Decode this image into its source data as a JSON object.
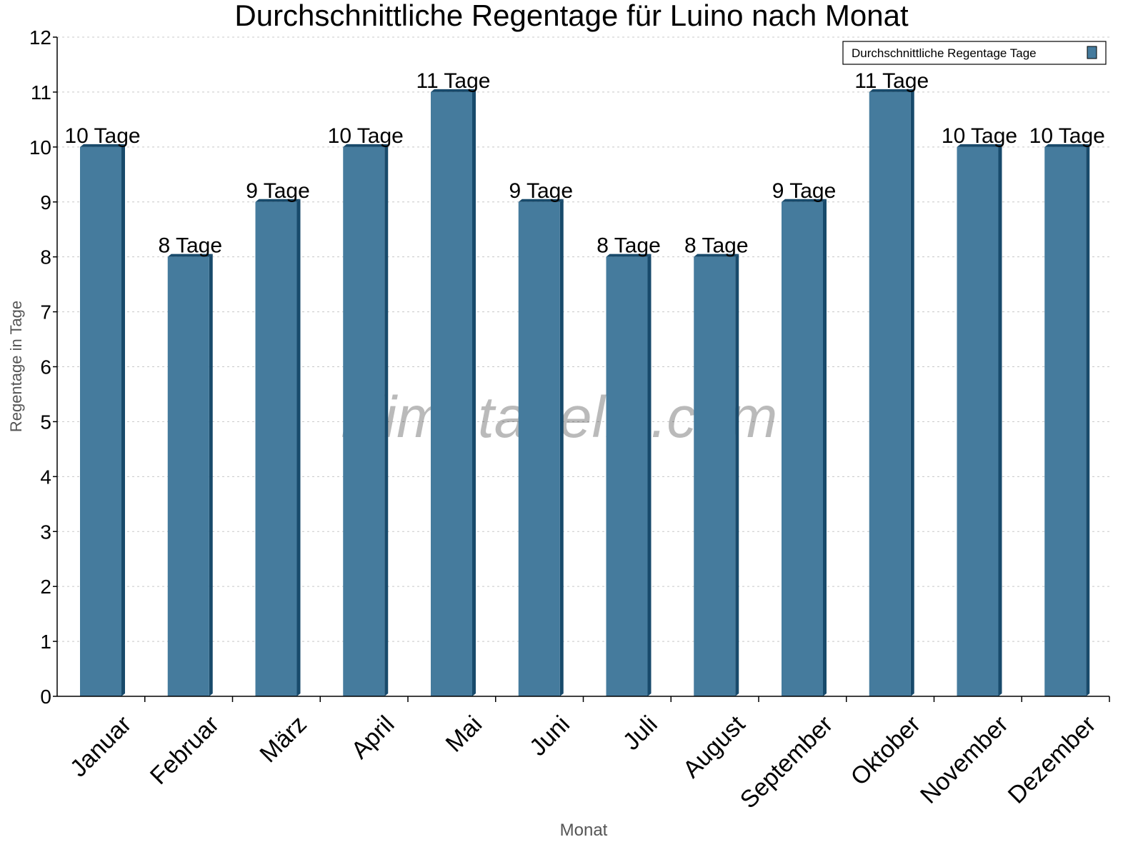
{
  "chart_data": {
    "type": "bar",
    "title": "Durchschnittliche Regentage für Luino nach Monat",
    "xlabel": "Monat",
    "ylabel": "Regentage in Tage",
    "ylim": [
      0,
      12
    ],
    "yticks": [
      0,
      1,
      2,
      3,
      4,
      5,
      6,
      7,
      8,
      9,
      10,
      11,
      12
    ],
    "grid": true,
    "legend_position": "top-right",
    "categories": [
      "Januar",
      "Februar",
      "März",
      "April",
      "Mai",
      "Juni",
      "Juli",
      "August",
      "September",
      "Oktober",
      "November",
      "Dezember"
    ],
    "series": [
      {
        "name": "Durchschnittliche Regentage Tage",
        "values": [
          10,
          8,
          9,
          10,
          11,
          9,
          8,
          8,
          9,
          11,
          10,
          10
        ],
        "data_labels": [
          "10 Tage",
          "8 Tage",
          "9 Tage",
          "10 Tage",
          "11 Tage",
          "9 Tage",
          "8 Tage",
          "8 Tage",
          "9 Tage",
          "11 Tage",
          "10 Tage",
          "10 Tage"
        ],
        "color": "#457b9d",
        "side_color": "#184a6b"
      }
    ],
    "watermark": "klimatabelle.com"
  }
}
